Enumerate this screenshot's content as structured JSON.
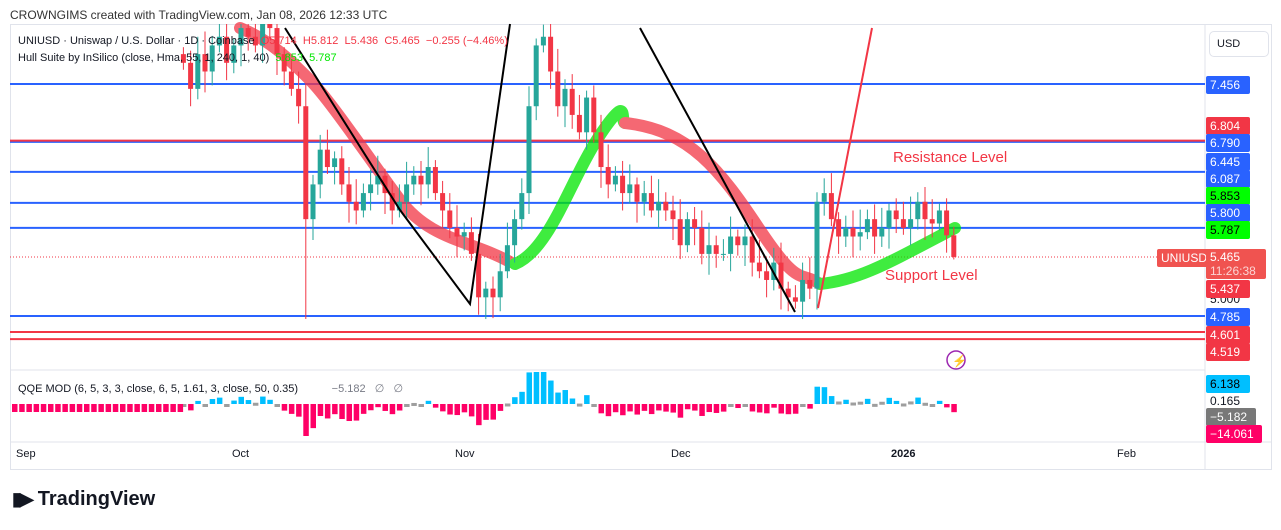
{
  "credit": "CROWNGIMS created with TradingView.com, Jan 08, 2026 12:33 UTC",
  "legend": {
    "symbol": "UNIUSD · Uniswap / U.S. Dollar · 1D · Coinbase",
    "o": "O5.714",
    "h": "H5.812",
    "l": "L5.436",
    "c": "C5.465",
    "change": "−0.255 (−4.46%)",
    "hull": "Hull Suite by InSilico (close, Hma, 55, 1, 240, 1, 40)",
    "hull_v1": "5.853",
    "hull_v2": "5.787",
    "qqe": "QQE MOD (6, 5, 3, 3, close, 6, 5, 1.61, 3, close, 50, 0.35)",
    "qqe_v": "−5.182",
    "qqe_na1": "∅",
    "qqe_na2": "∅"
  },
  "currency": "USD",
  "annotations": {
    "resistance": "Resistance Level",
    "support": "Support Level"
  },
  "symbol_tag": "UNIUSD",
  "countdown": "11:26:38",
  "price_labels": {
    "l7456": "7.456",
    "l6804": "6.804",
    "l6790": "6.790",
    "l6445": "6.445",
    "l6087": "6.087",
    "l5853": "5.853",
    "l5800": "5.800",
    "l5787": "5.787",
    "l5465": "5.465",
    "l5437": "5.437",
    "l5000": "5.000",
    "l4785": "4.785",
    "l4601": "4.601",
    "l4519": "4.519"
  },
  "qqe_labels": {
    "a": "6.138",
    "b": "0.165",
    "c": "−5.182",
    "d": "−14.061"
  },
  "time_ticks": [
    "Sep",
    "Oct",
    "Nov",
    "Dec",
    "2026",
    "Feb"
  ],
  "brand": "TradingView",
  "colors": {
    "up": "#26a69a",
    "down": "#f23645",
    "blue": "#2962ff",
    "hull_up": "#00e600",
    "hull_down": "#f23645",
    "qqe_up": "#00bfff",
    "qqe_down": "#ff0066",
    "qqe_neutral": "#9e9e9e"
  },
  "chart_data": {
    "type": "candlestick",
    "start_date": "2025-09-23",
    "interval": "1D",
    "closes": [
      7.7,
      7.4,
      7.8,
      7.6,
      7.9,
      8.0,
      7.7,
      7.9,
      8.1,
      8.0,
      7.9,
      8.2,
      8.1,
      7.8,
      7.6,
      7.4,
      7.2,
      5.9,
      6.3,
      6.7,
      6.5,
      6.6,
      6.3,
      6.1,
      6.0,
      6.2,
      6.3,
      6.4,
      6.2,
      6.0,
      6.1,
      6.3,
      6.4,
      6.3,
      6.5,
      6.2,
      6.0,
      5.8,
      5.7,
      5.75,
      5.5,
      5.0,
      5.1,
      5.0,
      5.3,
      5.6,
      5.9,
      6.2,
      7.2,
      7.9,
      8.0,
      7.6,
      7.2,
      7.4,
      7.1,
      6.9,
      7.3,
      6.9,
      6.5,
      6.3,
      6.4,
      6.2,
      6.3,
      6.1,
      6.2,
      6.0,
      6.1,
      6.0,
      5.9,
      5.6,
      5.9,
      5.8,
      5.5,
      5.6,
      5.5,
      5.5,
      5.7,
      5.6,
      5.7,
      5.4,
      5.3,
      5.2,
      5.4,
      5.1,
      5.0,
      4.95,
      5.2,
      5.1,
      6.1,
      6.2,
      5.9,
      5.7,
      5.8,
      5.7,
      5.75,
      5.9,
      5.7,
      5.8,
      6.0,
      5.9,
      5.8,
      5.9,
      6.1,
      5.9,
      5.85,
      6.0,
      5.714,
      5.465
    ],
    "last": {
      "open": 5.714,
      "high": 5.812,
      "low": 5.436,
      "close": 5.465
    },
    "horizontal_levels": {
      "blue": [
        7.456,
        6.79,
        6.445,
        6.087,
        5.8,
        4.785
      ],
      "red": [
        6.804,
        4.601,
        4.519
      ]
    },
    "ylim": [
      4.4,
      8.2
    ]
  }
}
